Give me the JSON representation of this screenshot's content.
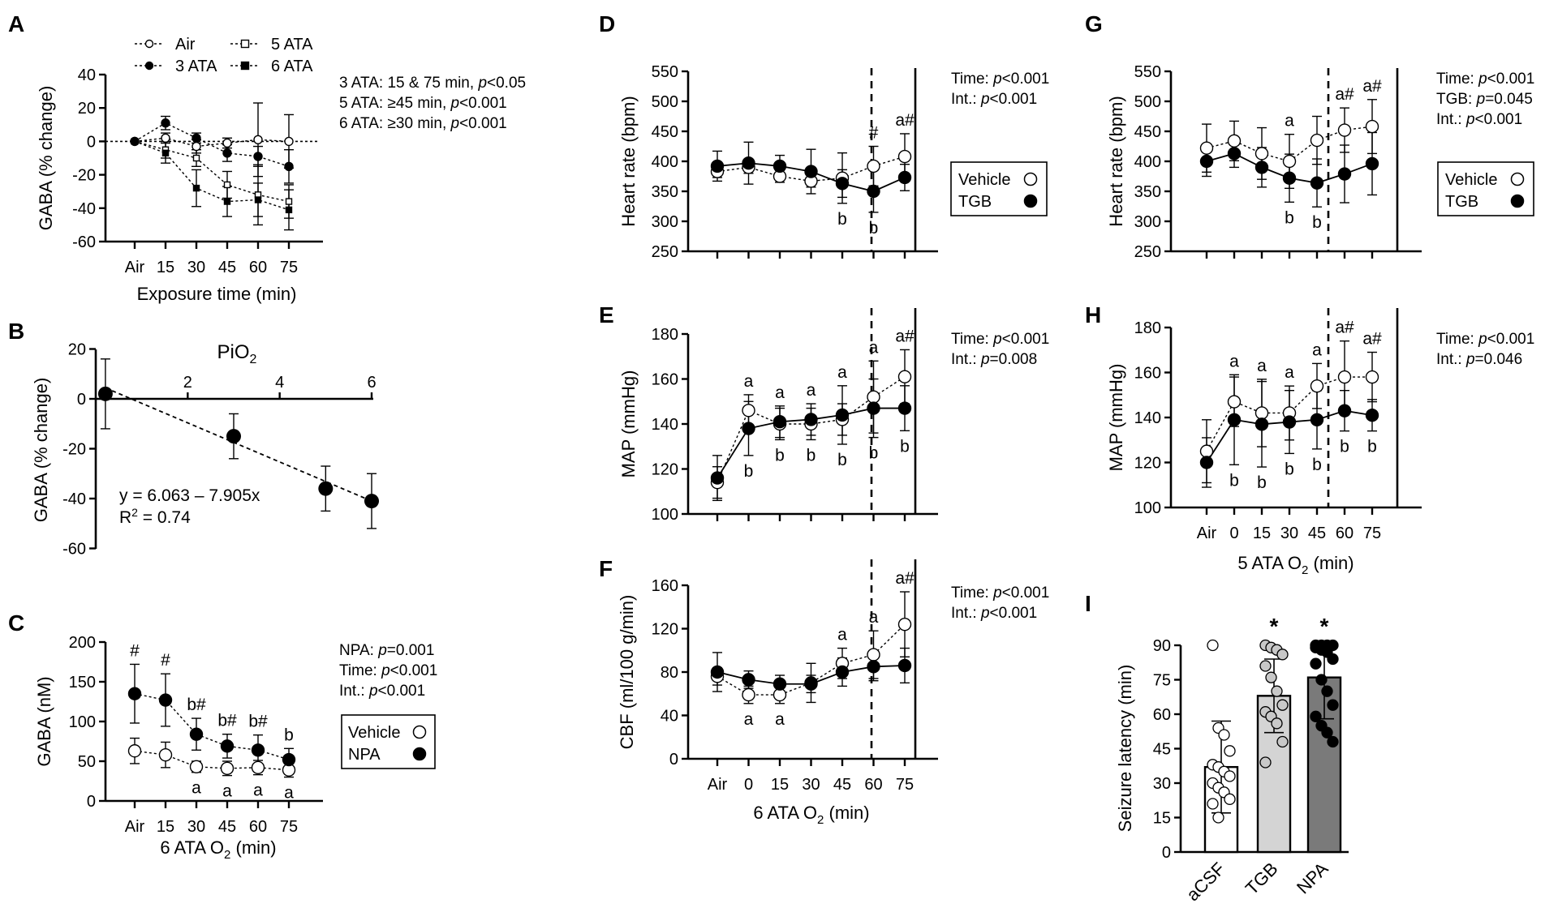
{
  "chart_data": [
    {
      "panel": "A",
      "type": "line",
      "categories": [
        "Air",
        "15",
        "30",
        "45",
        "60",
        "75"
      ],
      "xlabel": "Exposure time (min)",
      "ylabel": "GABA (% change)",
      "ylim": [
        -60,
        40
      ],
      "yticks": [
        "40",
        "20",
        "0",
        "-20",
        "-40",
        "-60"
      ],
      "series": [
        {
          "name": "Air",
          "marker": "open-circle",
          "values": [
            0,
            2,
            -3,
            -1,
            1,
            0
          ],
          "err": [
            0,
            3,
            4,
            3,
            22,
            16
          ]
        },
        {
          "name": "3 ATA",
          "marker": "filled-circle",
          "values": [
            0,
            11,
            2,
            -7,
            -9,
            -15
          ],
          "err": [
            0,
            4,
            3,
            5,
            6,
            10
          ]
        },
        {
          "name": "5 ATA",
          "marker": "open-square",
          "values": [
            0,
            -5,
            -10,
            -26,
            -32,
            -36
          ],
          "err": [
            0,
            5,
            5,
            8,
            18,
            10
          ]
        },
        {
          "name": "6 ATA",
          "marker": "filled-square",
          "values": [
            0,
            -7,
            -28,
            -36,
            -35,
            -41
          ],
          "err": [
            0,
            6,
            11,
            9,
            10,
            12
          ]
        }
      ],
      "stats": [
        {
          "pre": "3 ATA: 15 & 75 min, ",
          "p": "p",
          "post": "<0.05"
        },
        {
          "pre": "5 ATA: ≥45 min, ",
          "p": "p",
          "post": "<0.001"
        },
        {
          "pre": "6 ATA: ≥30 min, ",
          "p": "p",
          "post": "<0.001"
        }
      ]
    },
    {
      "panel": "B",
      "type": "scatter",
      "title_base": "PiO",
      "title_sub": "2",
      "ylabel": "GABA (% change)",
      "ylim": [
        -60,
        20
      ],
      "xlim": [
        0,
        6
      ],
      "xticks": [
        "2",
        "4",
        "6"
      ],
      "yticks": [
        "20",
        "0",
        "-20",
        "-40",
        "-60"
      ],
      "points": [
        {
          "x": 0.21,
          "y": 2,
          "err": 14
        },
        {
          "x": 3,
          "y": -15,
          "err": 9
        },
        {
          "x": 5,
          "y": -36,
          "err": 9
        },
        {
          "x": 6,
          "y": -41,
          "err": 11
        }
      ],
      "fit": {
        "intercept": 6.063,
        "slope": -7.905
      },
      "equation": "y = 6.063 – 7.905x",
      "r2_base": "R",
      "r2_sup": "2",
      "r2_value": " = 0.74"
    },
    {
      "panel": "C",
      "type": "line",
      "categories": [
        "Air",
        "15",
        "30",
        "45",
        "60",
        "75"
      ],
      "xlabel_base": "6 ATA O",
      "xlabel_sub": "2",
      "xlabel_post": " (min)",
      "ylabel": "GABA (nM)",
      "ylim": [
        0,
        200
      ],
      "yticks": [
        "200",
        "150",
        "100",
        "50",
        "0"
      ],
      "series": [
        {
          "name": "Vehicle",
          "marker": "open-circle",
          "values": [
            63,
            58,
            43,
            41,
            42,
            39
          ],
          "err": [
            16,
            16,
            7,
            9,
            9,
            9
          ]
        },
        {
          "name": "NPA",
          "marker": "filled-circle",
          "values": [
            135,
            127,
            84,
            69,
            64,
            52
          ],
          "err": [
            37,
            33,
            20,
            15,
            19,
            14
          ]
        }
      ],
      "annotations_top": [
        "#",
        "#",
        "b#",
        "b#",
        "b#",
        "b"
      ],
      "annotations_bottom": [
        "",
        "",
        "a",
        "a",
        "a",
        "a"
      ],
      "stats": [
        {
          "pre": "NPA: ",
          "p": "p",
          "post": "=0.001"
        },
        {
          "pre": "Time: ",
          "p": "p",
          "post": "<0.001"
        },
        {
          "pre": "Int.: ",
          "p": "p",
          "post": "<0.001"
        }
      ],
      "legend": [
        "Vehicle",
        "NPA"
      ]
    },
    {
      "panel": "D",
      "type": "line",
      "categories": [
        "Air",
        "0",
        "15",
        "30",
        "45",
        "60",
        "75"
      ],
      "ylabel": "Heart rate (bpm)",
      "ylim": [
        250,
        550
      ],
      "yticks": [
        "550",
        "500",
        "450",
        "400",
        "350",
        "300",
        "250"
      ],
      "series": [
        {
          "name": "Vehicle",
          "marker": "open-circle",
          "values": [
            383,
            390,
            375,
            367,
            372,
            392,
            408
          ],
          "err": [
            10,
            10,
            10,
            10,
            42,
            33,
            38
          ]
        },
        {
          "name": "TGB",
          "marker": "filled-circle",
          "values": [
            392,
            397,
            392,
            383,
            363,
            350,
            373
          ],
          "err": [
            25,
            35,
            18,
            37,
            23,
            35,
            22
          ]
        }
      ],
      "annotations_top": [
        "",
        "",
        "",
        "",
        "",
        "#",
        "a#"
      ],
      "annotations_bottom": [
        "",
        "",
        "",
        "",
        "b",
        "b",
        ""
      ],
      "stats": [
        {
          "pre": "Time: ",
          "p": "p",
          "post": "<0.001"
        },
        {
          "pre": "Int.: ",
          "p": "p",
          "post": "<0.001"
        }
      ],
      "legend": [
        "Vehicle",
        "TGB"
      ]
    },
    {
      "panel": "E",
      "type": "line",
      "categories": [
        "Air",
        "0",
        "15",
        "30",
        "45",
        "60",
        "75"
      ],
      "ylabel": "MAP (mmHg)",
      "ylim": [
        100,
        180
      ],
      "yticks": [
        "180",
        "160",
        "140",
        "120",
        "100"
      ],
      "series": [
        {
          "name": "Vehicle",
          "marker": "open-circle",
          "values": [
            114,
            146,
            140,
            140,
            142,
            152,
            161
          ],
          "err": [
            7,
            7,
            7,
            7,
            7,
            16,
            12
          ]
        },
        {
          "name": "TGB",
          "marker": "filled-circle",
          "values": [
            116,
            138,
            141,
            142,
            144,
            147,
            147
          ],
          "err": [
            10,
            12,
            7,
            7,
            13,
            13,
            10
          ]
        }
      ],
      "annotations_top": [
        "",
        "a",
        "a",
        "a",
        "a",
        "a",
        "a#"
      ],
      "annotations_bottom": [
        "",
        "b",
        "b",
        "b",
        "b",
        "b",
        "b"
      ],
      "stats": [
        {
          "pre": "Time: ",
          "p": "p",
          "post": "<0.001"
        },
        {
          "pre": "Int.: ",
          "p": "p",
          "post": "=0.008"
        }
      ]
    },
    {
      "panel": "F",
      "type": "line",
      "categories": [
        "Air",
        "0",
        "15",
        "30",
        "45",
        "60",
        "75"
      ],
      "xlabel_base": "6 ATA O",
      "xlabel_sub": "2",
      "xlabel_post": " (min)",
      "ylabel": "CBF (ml/100 g/min)",
      "ylim": [
        0,
        160
      ],
      "yticks": [
        "160",
        "120",
        "80",
        "40",
        "0"
      ],
      "series": [
        {
          "name": "Vehicle",
          "marker": "open-circle",
          "values": [
            76,
            59,
            59,
            70,
            88,
            96,
            124
          ],
          "err": [
            8,
            8,
            8,
            18,
            14,
            22,
            30
          ]
        },
        {
          "name": "TGB",
          "marker": "filled-circle",
          "values": [
            80,
            73,
            69,
            69,
            80,
            85,
            86
          ],
          "err": [
            18,
            8,
            8,
            8,
            13,
            13,
            16
          ]
        }
      ],
      "annotations_top": [
        "",
        "",
        "",
        "",
        "a",
        "a",
        "a#"
      ],
      "annotations_bottom": [
        "",
        "a",
        "a",
        "",
        "",
        "",
        ""
      ],
      "stats": [
        {
          "pre": "Time: ",
          "p": "p",
          "post": "<0.001"
        },
        {
          "pre": "Int.: ",
          "p": "p",
          "post": "<0.001"
        }
      ]
    },
    {
      "panel": "G",
      "type": "line",
      "categories": [
        "Air",
        "0",
        "15",
        "30",
        "45",
        "60",
        "75"
      ],
      "ylabel": "Heart rate (bpm)",
      "ylim": [
        250,
        550
      ],
      "yticks": [
        "550",
        "500",
        "450",
        "400",
        "350",
        "300",
        "250"
      ],
      "series": [
        {
          "name": "Vehicle",
          "marker": "open-circle",
          "values": [
            422,
            434,
            413,
            400,
            435,
            452,
            458
          ],
          "err": [
            40,
            33,
            43,
            45,
            40,
            37,
            45
          ]
        },
        {
          "name": "TGB",
          "marker": "filled-circle",
          "values": [
            400,
            413,
            390,
            372,
            364,
            379,
            396
          ],
          "err": [
            25,
            23,
            33,
            40,
            40,
            48,
            52
          ]
        }
      ],
      "annotations_top": [
        "",
        "",
        "",
        "a",
        "",
        "a#",
        "a#"
      ],
      "annotations_bottom": [
        "",
        "",
        "",
        "b",
        "b",
        "",
        ""
      ],
      "stats": [
        {
          "pre": "Time: ",
          "p": "p",
          "post": "<0.001"
        },
        {
          "pre": "TGB: ",
          "p": "p",
          "post": "=0.045"
        },
        {
          "pre": "Int.: ",
          "p": "p",
          "post": "<0.001"
        }
      ],
      "legend": [
        "Vehicle",
        "TGB"
      ]
    },
    {
      "panel": "H",
      "type": "line",
      "categories": [
        "Air",
        "0",
        "15",
        "30",
        "45",
        "60",
        "75"
      ],
      "xlabel_base": "5 ATA O",
      "xlabel_sub": "2",
      "xlabel_post": " (min)",
      "ylabel": "MAP (mmHg)",
      "ylim": [
        100,
        180
      ],
      "yticks": [
        "180",
        "160",
        "140",
        "120",
        "100"
      ],
      "series": [
        {
          "name": "Vehicle",
          "marker": "open-circle",
          "values": [
            125,
            147,
            142,
            142,
            154,
            158,
            158
          ],
          "err": [
            14,
            11,
            15,
            12,
            10,
            16,
            11
          ]
        },
        {
          "name": "TGB",
          "marker": "filled-circle",
          "values": [
            120,
            139,
            137,
            138,
            139,
            143,
            141
          ],
          "err": [
            11,
            20,
            19,
            14,
            13,
            9,
            7
          ]
        }
      ],
      "annotations_top": [
        "",
        "a",
        "a",
        "a",
        "a",
        "a#",
        "a#"
      ],
      "annotations_bottom": [
        "",
        "b",
        "b",
        "b",
        "b",
        "b",
        "b"
      ],
      "stats": [
        {
          "pre": "Time: ",
          "p": "p",
          "post": "<0.001"
        },
        {
          "pre": "Int.: ",
          "p": "p",
          "post": "=0.046"
        }
      ]
    },
    {
      "panel": "I",
      "type": "bar",
      "categories": [
        "aCSF",
        "TGB",
        "NPA"
      ],
      "ylabel": "Seizure latency (min)",
      "ylim": [
        0,
        90
      ],
      "yticks": [
        "90",
        "75",
        "60",
        "45",
        "30",
        "15",
        "0"
      ],
      "values": [
        37,
        68,
        76
      ],
      "err": [
        20,
        16,
        18
      ],
      "colors": [
        "#ffffff",
        "#d4d4d4",
        "#7a7a7a"
      ],
      "significance": [
        "",
        "*",
        "*"
      ],
      "points": [
        [
          90,
          54,
          51,
          44,
          38,
          37,
          35,
          33,
          30,
          28,
          26,
          23,
          21,
          15
        ],
        [
          90,
          89,
          88,
          86,
          81,
          76,
          70,
          64,
          61,
          59,
          56,
          48,
          39
        ],
        [
          90,
          90,
          90,
          90,
          89,
          88,
          87,
          84,
          82,
          75,
          70,
          64,
          59,
          55,
          52,
          48
        ]
      ]
    }
  ]
}
